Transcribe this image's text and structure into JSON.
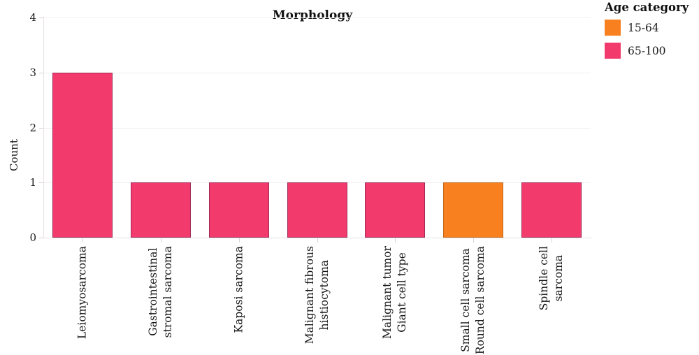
{
  "chart_data": {
    "type": "bar",
    "title": "Morphology",
    "xlabel": "",
    "ylabel": "Count",
    "categories": [
      [
        "Leiomyosarcoma"
      ],
      [
        "Gastrointestinal",
        "stromal sarcoma"
      ],
      [
        "Kaposi sarcoma"
      ],
      [
        "Malignant fibrous",
        "histiocytoma"
      ],
      [
        "Malignant tumor",
        "Giant cell type"
      ],
      [
        "Small cell sarcoma",
        "Round cell sarcoma"
      ],
      [
        "Spindle cell",
        "sarcoma"
      ]
    ],
    "values": [
      3,
      1,
      1,
      1,
      1,
      1,
      1
    ],
    "bar_groups": [
      "65-100",
      "65-100",
      "65-100",
      "65-100",
      "65-100",
      "15-64",
      "65-100"
    ],
    "yticks": [
      0,
      1,
      2,
      3,
      4
    ],
    "ylim": [
      0,
      4
    ],
    "grid": true,
    "legend": {
      "title": "Age category",
      "position": "top-right",
      "entries": [
        {
          "label": "15-64",
          "color": "#F9801F",
          "border": "#c0661a"
        },
        {
          "label": "65-100",
          "color": "#F23A6C",
          "border": "#a02a5a"
        }
      ]
    }
  }
}
